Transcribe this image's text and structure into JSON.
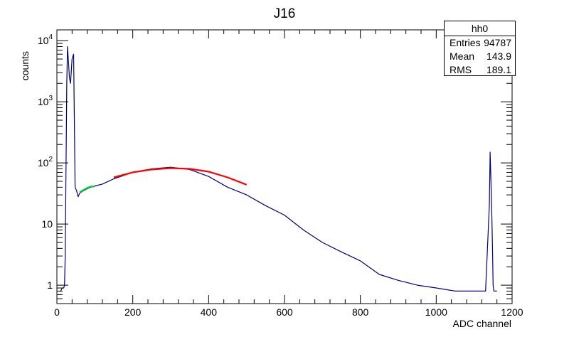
{
  "chart_data": {
    "type": "line",
    "title": "J16",
    "xlabel": "ADC channel",
    "ylabel": "counts",
    "xlim": [
      0,
      1200
    ],
    "ylim": [
      0.5,
      15000
    ],
    "yscale": "log",
    "x_ticks": [
      "0",
      "200",
      "400",
      "600",
      "800",
      "1000",
      "1200"
    ],
    "y_ticks": [
      {
        "value": 1,
        "label": "1"
      },
      {
        "value": 10,
        "label": "10"
      },
      {
        "value": 100,
        "label": "10",
        "exp": "2"
      },
      {
        "value": 1000,
        "label": "10",
        "exp": "3"
      },
      {
        "value": 10000,
        "label": "10",
        "exp": "4"
      }
    ],
    "grid": false,
    "series": [
      {
        "color": "#000080",
        "x": [
          10,
          14,
          18,
          20,
          22,
          24,
          26,
          28,
          30,
          33,
          36,
          40,
          44,
          48,
          52,
          56,
          60,
          70,
          80,
          90,
          100,
          120,
          150,
          200,
          250,
          300,
          350,
          400,
          450,
          500,
          550,
          600,
          650,
          700,
          750,
          800,
          850,
          900,
          950,
          1000,
          1050,
          1100,
          1130,
          1140,
          1142,
          1144,
          1146,
          1148,
          1150,
          1152,
          1160
        ],
        "values": [
          0.8,
          0.9,
          0.9,
          1.0,
          3.0,
          80,
          2000,
          8000,
          5000,
          2500,
          2000,
          5000,
          6000,
          40,
          35,
          28,
          32,
          35,
          38,
          40,
          42,
          45,
          55,
          70,
          80,
          85,
          78,
          60,
          40,
          30,
          20,
          14,
          8,
          5,
          3.5,
          2.5,
          1.5,
          1.2,
          1.0,
          0.9,
          0.8,
          0.8,
          0.8,
          20,
          150,
          60,
          20,
          5,
          1.0,
          0.8,
          0.8
        ]
      },
      {
        "color": "#ff0000",
        "x": [
          150,
          200,
          250,
          300,
          350,
          400,
          450,
          500
        ],
        "values": [
          58,
          70,
          78,
          82,
          80,
          72,
          58,
          44
        ]
      },
      {
        "color": "#00cc33",
        "x": [
          60,
          70,
          80,
          90,
          100
        ],
        "values": [
          33,
          36,
          39,
          41,
          41
        ]
      }
    ]
  },
  "stats": {
    "name": "hh0",
    "rows": [
      {
        "label": "Entries",
        "value": "94787"
      },
      {
        "label": "Mean",
        "value": "143.9"
      },
      {
        "label": "RMS",
        "value": "189.1"
      }
    ]
  }
}
